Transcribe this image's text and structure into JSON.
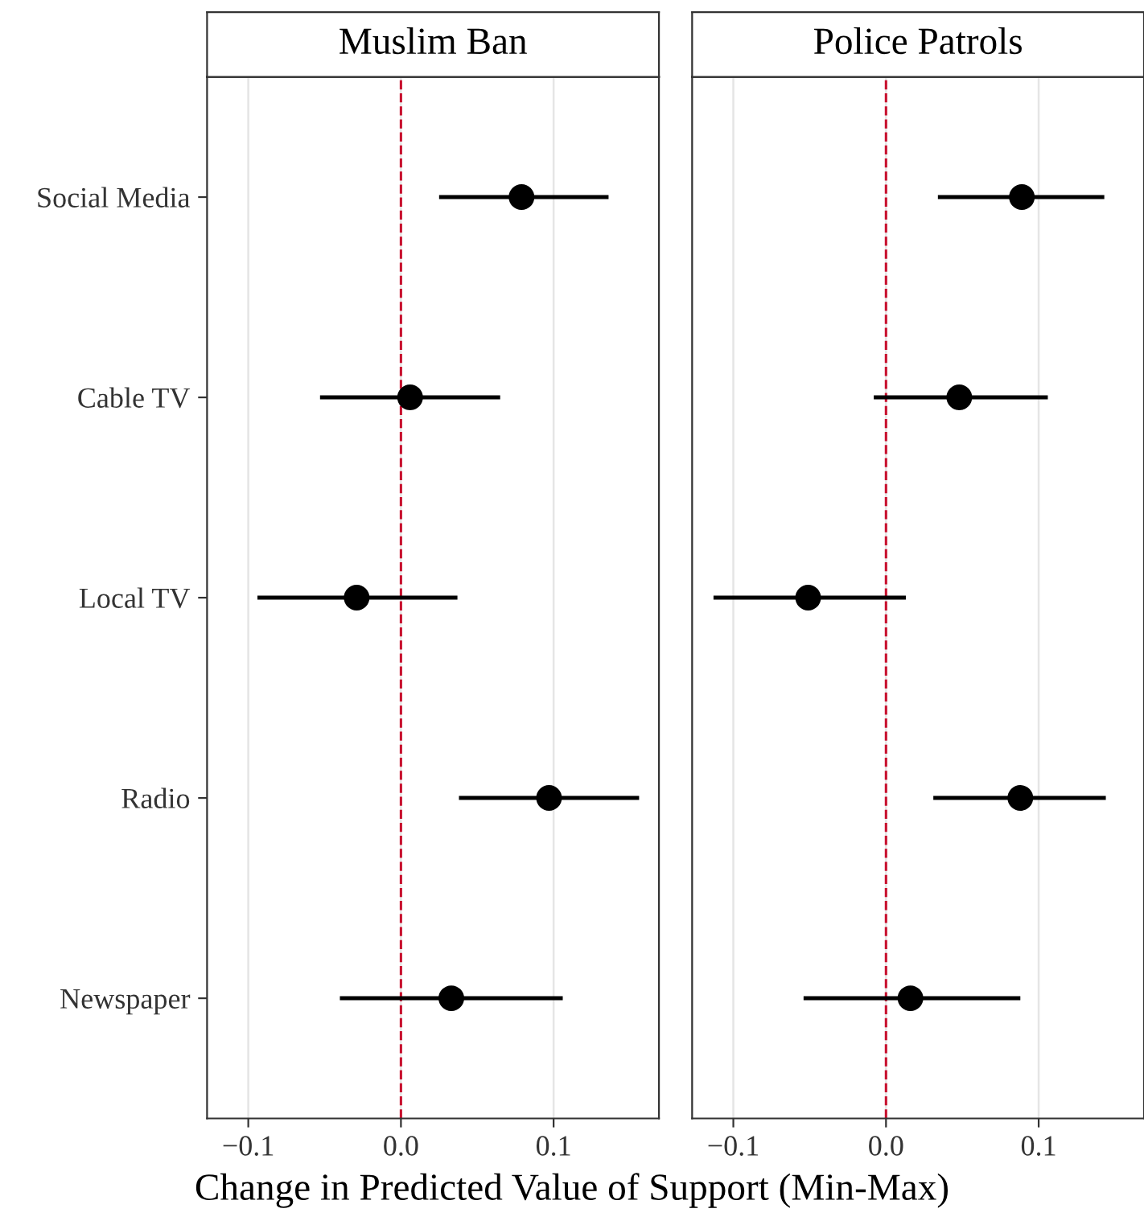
{
  "chart_data": [
    {
      "type": "scatter",
      "title": "Muslim Ban",
      "xlabel": "Change in Predicted Value of Support (Min-Max)",
      "orientation": "horizontal",
      "categories": [
        "Social Media",
        "Cable TV",
        "Local TV",
        "Radio",
        "Newspaper"
      ],
      "series": [
        {
          "color": "#000000",
          "values": [
            0.079,
            0.006,
            -0.029,
            0.097,
            0.033
          ],
          "errors": [
            [
              0.025,
              0.136
            ],
            [
              -0.053,
              0.065
            ],
            [
              -0.094,
              0.037
            ],
            [
              0.038,
              0.156
            ],
            [
              -0.04,
              0.106
            ]
          ]
        }
      ],
      "xlim": [
        -0.127,
        0.169
      ],
      "xticks": [
        {
          "value": -0.1,
          "label": "−0.1"
        },
        {
          "value": 0,
          "label": "0.0"
        },
        {
          "value": 0.1,
          "label": "0.1"
        }
      ],
      "ref_lines": [
        {
          "axis": "x",
          "value": 0,
          "color": "#c8102e",
          "line_style": "dashed"
        }
      ],
      "grid": "x",
      "marker": "circle"
    },
    {
      "type": "scatter",
      "title": "Police Patrols",
      "orientation": "horizontal",
      "categories": [
        null,
        null,
        null,
        null,
        null
      ],
      "series": [
        {
          "color": "#000000",
          "values": [
            0.089,
            0.048,
            -0.051,
            0.088,
            0.016
          ],
          "errors": [
            [
              0.034,
              0.143
            ],
            [
              -0.008,
              0.106
            ],
            [
              -0.113,
              0.013
            ],
            [
              0.031,
              0.144
            ],
            [
              -0.054,
              0.088
            ]
          ]
        }
      ],
      "xlim": [
        -0.127,
        0.169
      ],
      "xticks": [
        {
          "value": -0.1,
          "label": "−0.1"
        },
        {
          "value": 0,
          "label": "0.0"
        },
        {
          "value": 0.1,
          "label": "0.1"
        }
      ],
      "ref_lines": [
        {
          "axis": "x",
          "value": 0,
          "color": "#c8102e",
          "line_style": "dashed"
        }
      ],
      "grid": "x",
      "marker": "circle",
      "tick_labels": "x"
    }
  ]
}
